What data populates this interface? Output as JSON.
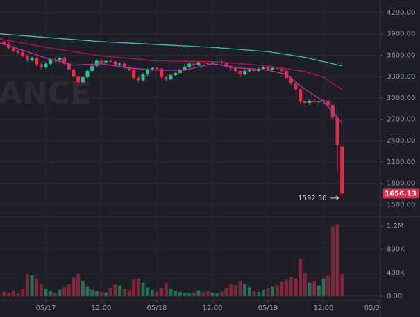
{
  "chart_data": {
    "type": "candlestick",
    "watermark": "ANCE",
    "x": [
      -9,
      -8,
      -7,
      -6,
      -5,
      -4,
      -3,
      -2,
      -1,
      0,
      1,
      2,
      3,
      4,
      5,
      6,
      7,
      8,
      9,
      10,
      11,
      12,
      13,
      14,
      15,
      16,
      17,
      18,
      19,
      20,
      21,
      22,
      23,
      24,
      25,
      26,
      27,
      28,
      29,
      30,
      31,
      32,
      33,
      34,
      35,
      36,
      37,
      38,
      39,
      40,
      41,
      42,
      43,
      44,
      45,
      46,
      47,
      48,
      49,
      50,
      51,
      52,
      53,
      54,
      55,
      56,
      57,
      58,
      59,
      60,
      61,
      62,
      63,
      64
    ],
    "open": [
      3790,
      3760,
      3700,
      3660,
      3640,
      3590,
      3530,
      3560,
      3470,
      3430,
      3480,
      3540,
      3530,
      3560,
      3480,
      3400,
      3300,
      3220,
      3290,
      3380,
      3450,
      3520,
      3500,
      3520,
      3510,
      3470,
      3480,
      3430,
      3400,
      3280,
      3250,
      3330,
      3400,
      3420,
      3410,
      3290,
      3260,
      3320,
      3350,
      3400,
      3440,
      3480,
      3460,
      3500,
      3490,
      3480,
      3500,
      3510,
      3490,
      3440,
      3420,
      3380,
      3330,
      3380,
      3400,
      3380,
      3410,
      3430,
      3400,
      3420,
      3410,
      3380,
      3280,
      3200,
      3120,
      2950,
      2930,
      2960,
      2940,
      2950,
      2960,
      2900,
      2720,
      2320
    ],
    "high": [
      3810,
      3790,
      3730,
      3690,
      3670,
      3610,
      3580,
      3580,
      3490,
      3500,
      3560,
      3570,
      3580,
      3580,
      3500,
      3420,
      3320,
      3310,
      3400,
      3470,
      3540,
      3550,
      3530,
      3540,
      3530,
      3500,
      3500,
      3450,
      3420,
      3300,
      3350,
      3420,
      3440,
      3440,
      3420,
      3310,
      3340,
      3370,
      3420,
      3460,
      3500,
      3500,
      3520,
      3520,
      3510,
      3520,
      3540,
      3530,
      3500,
      3460,
      3440,
      3400,
      3400,
      3420,
      3420,
      3430,
      3450,
      3450,
      3440,
      3440,
      3430,
      3400,
      3300,
      3220,
      3140,
      2980,
      2980,
      2990,
      2970,
      2980,
      2990,
      2970,
      2730,
      2330
    ],
    "low": [
      3740,
      3680,
      3640,
      3610,
      3570,
      3500,
      3510,
      3440,
      3400,
      3410,
      3460,
      3500,
      3510,
      3460,
      3380,
      3280,
      3160,
      3190,
      3270,
      3360,
      3430,
      3480,
      3480,
      3490,
      3450,
      3450,
      3410,
      3380,
      3260,
      3220,
      3230,
      3310,
      3380,
      3390,
      3270,
      3230,
      3250,
      3300,
      3330,
      3380,
      3420,
      3440,
      3440,
      3470,
      3460,
      3470,
      3480,
      3470,
      3420,
      3390,
      3360,
      3310,
      3320,
      3360,
      3360,
      3370,
      3400,
      3380,
      3390,
      3390,
      3360,
      3260,
      3180,
      3100,
      2920,
      2870,
      2900,
      2920,
      2910,
      2920,
      2880,
      2700,
      1960,
      1592.5
    ],
    "close": [
      3760,
      3700,
      3660,
      3640,
      3590,
      3530,
      3560,
      3470,
      3430,
      3480,
      3540,
      3530,
      3560,
      3480,
      3400,
      3300,
      3220,
      3290,
      3380,
      3450,
      3520,
      3500,
      3520,
      3510,
      3470,
      3480,
      3430,
      3400,
      3280,
      3250,
      3330,
      3400,
      3420,
      3410,
      3290,
      3260,
      3320,
      3350,
      3400,
      3440,
      3480,
      3460,
      3500,
      3490,
      3480,
      3500,
      3510,
      3490,
      3440,
      3420,
      3380,
      3330,
      3380,
      3400,
      3380,
      3410,
      3430,
      3400,
      3420,
      3410,
      3380,
      3280,
      3200,
      3120,
      2950,
      2930,
      2960,
      2940,
      2950,
      2960,
      2900,
      2720,
      2340,
      1656.13
    ],
    "volume": [
      80000,
      60000,
      100000,
      50000,
      120000,
      380000,
      360000,
      300000,
      200000,
      120000,
      90000,
      60000,
      110000,
      150000,
      200000,
      320000,
      380000,
      260000,
      160000,
      110000,
      90000,
      70000,
      60000,
      140000,
      200000,
      180000,
      120000,
      100000,
      280000,
      300000,
      230000,
      150000,
      110000,
      80000,
      140000,
      220000,
      120000,
      90000,
      70000,
      60000,
      50000,
      60000,
      100000,
      70000,
      90000,
      60000,
      50000,
      80000,
      140000,
      200000,
      190000,
      260000,
      210000,
      150000,
      90000,
      70000,
      110000,
      130000,
      160000,
      190000,
      250000,
      280000,
      330000,
      300000,
      640000,
      400000,
      230000,
      260000,
      180000,
      300000,
      350000,
      1190000,
      1230000,
      380000
    ],
    "up_color": "#2fbf8c",
    "down_color": "#d9304f",
    "lines": [
      {
        "color": "#3fbfbf",
        "x": [
          -10,
          0,
          12,
          24,
          36,
          48,
          56,
          64
        ],
        "values": [
          3900,
          3850,
          3790,
          3750,
          3710,
          3650,
          3570,
          3450
        ]
      },
      {
        "color": "#b0184b",
        "x": [
          -10,
          0,
          12,
          24,
          36,
          48,
          56,
          60,
          64
        ],
        "values": [
          3830,
          3710,
          3590,
          3520,
          3510,
          3450,
          3370,
          3290,
          3120
        ]
      },
      {
        "color": "#c52bb5",
        "x": [
          -10,
          -4,
          0,
          6,
          12,
          18,
          24,
          30,
          36,
          42,
          48,
          52,
          56,
          60,
          64
        ],
        "values": [
          3770,
          3650,
          3560,
          3460,
          3480,
          3420,
          3390,
          3390,
          3480,
          3420,
          3390,
          3330,
          3120,
          2950,
          2650
        ]
      }
    ],
    "xlim": [
      -9.9,
      72.3
    ],
    "xticks": [
      {
        "value": 0,
        "label": "05/17"
      },
      {
        "value": 12,
        "label": "12:00"
      },
      {
        "value": 24,
        "label": "05/18"
      },
      {
        "value": 36,
        "label": "12:00"
      },
      {
        "value": 48,
        "label": "05/19"
      },
      {
        "value": 60,
        "label": "12:00"
      },
      {
        "value": 72,
        "label": "05/2"
      }
    ],
    "ylim": [
      1327,
      4376
    ],
    "yticks": [
      {
        "value": 1500,
        "label": "1500.00"
      },
      {
        "value": 1800,
        "label": "1800.00"
      },
      {
        "value": 2100,
        "label": "2100.00"
      },
      {
        "value": 2400,
        "label": "2400.00"
      },
      {
        "value": 2700,
        "label": "2700.00"
      },
      {
        "value": 3000,
        "label": "3000.00"
      },
      {
        "value": 3300,
        "label": "3300.00"
      },
      {
        "value": 3600,
        "label": "3600.00"
      },
      {
        "value": 3900,
        "label": "3900.00"
      },
      {
        "value": 4200,
        "label": "4200.00"
      }
    ],
    "volume_lim": [
      -71000,
      1353000
    ],
    "volume_ticks": [
      {
        "value": 0,
        "label": "0.00"
      },
      {
        "value": 400000,
        "label": "400K"
      },
      {
        "value": 800000,
        "label": "800K"
      },
      {
        "value": 1200000,
        "label": "1.2M"
      }
    ],
    "low_marker": {
      "value": 1592.5,
      "label": "1592.50"
    },
    "last_price": {
      "value": 1656.13,
      "label": "1656.13"
    }
  }
}
